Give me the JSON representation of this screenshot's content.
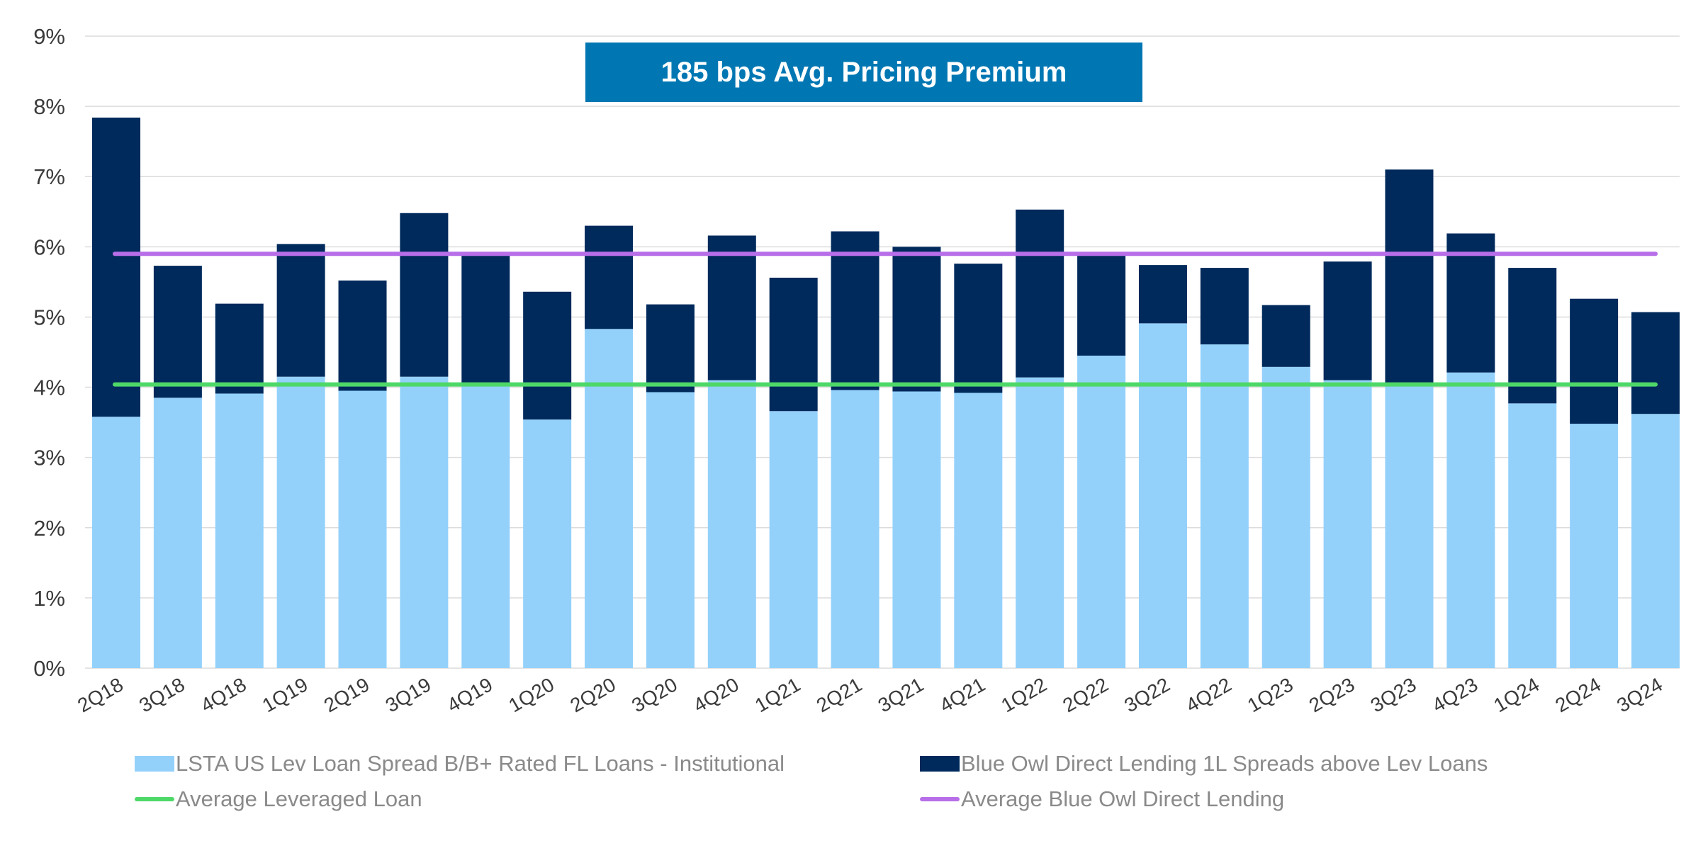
{
  "banner": {
    "text": "185 bps Avg. Pricing Premium",
    "color": "#0077b3"
  },
  "legend": {
    "lsta": "LSTA US Lev Loan Spread B/B+ Rated FL Loans - Institutional",
    "blue_owl": "Blue Owl Direct Lending 1L Spreads above Lev Loans",
    "avg_lev": "Average Leveraged Loan",
    "avg_owl": "Average Blue Owl Direct Lending"
  },
  "colors": {
    "lsta": "#93d1fb",
    "blue_owl": "#002a5c",
    "avg_lev": "#4ed868",
    "avg_owl": "#b76ee8",
    "grid": "#dcdcdc"
  },
  "chart_data": {
    "type": "bar",
    "stacked": true,
    "categories": [
      "2Q18",
      "3Q18",
      "4Q18",
      "1Q19",
      "2Q19",
      "3Q19",
      "4Q19",
      "1Q20",
      "2Q20",
      "3Q20",
      "4Q20",
      "1Q21",
      "2Q21",
      "3Q21",
      "4Q21",
      "1Q22",
      "2Q22",
      "3Q22",
      "4Q22",
      "1Q23",
      "2Q23",
      "3Q23",
      "4Q23",
      "1Q24",
      "2Q24",
      "3Q24"
    ],
    "series": [
      {
        "name": "LSTA US Lev Loan Spread B/B+ Rated FL Loans - Institutional",
        "values": [
          3.58,
          3.85,
          3.91,
          4.15,
          3.95,
          4.15,
          4.05,
          3.54,
          4.83,
          3.93,
          4.1,
          3.66,
          3.96,
          3.94,
          3.92,
          4.14,
          4.45,
          4.91,
          4.61,
          4.29,
          4.1,
          4.05,
          4.21,
          3.77,
          3.48,
          3.62
        ]
      },
      {
        "name": "Blue Owl Direct Lending 1L Spreads above Lev Loans",
        "values": [
          4.26,
          1.88,
          1.28,
          1.89,
          1.57,
          2.33,
          1.84,
          1.82,
          1.47,
          1.25,
          2.06,
          1.9,
          2.26,
          2.06,
          1.84,
          2.39,
          1.44,
          0.83,
          1.09,
          0.88,
          1.69,
          3.05,
          1.98,
          1.93,
          1.78,
          1.45
        ]
      }
    ],
    "lines": [
      {
        "name": "Average Leveraged Loan",
        "value": 4.04
      },
      {
        "name": "Average Blue Owl Direct Lending",
        "value": 5.9
      }
    ],
    "yticks": [
      "0%",
      "1%",
      "2%",
      "3%",
      "4%",
      "5%",
      "6%",
      "7%",
      "8%",
      "9%"
    ],
    "ylim": [
      0,
      9
    ],
    "grid": true,
    "legend_position": "bottom"
  }
}
